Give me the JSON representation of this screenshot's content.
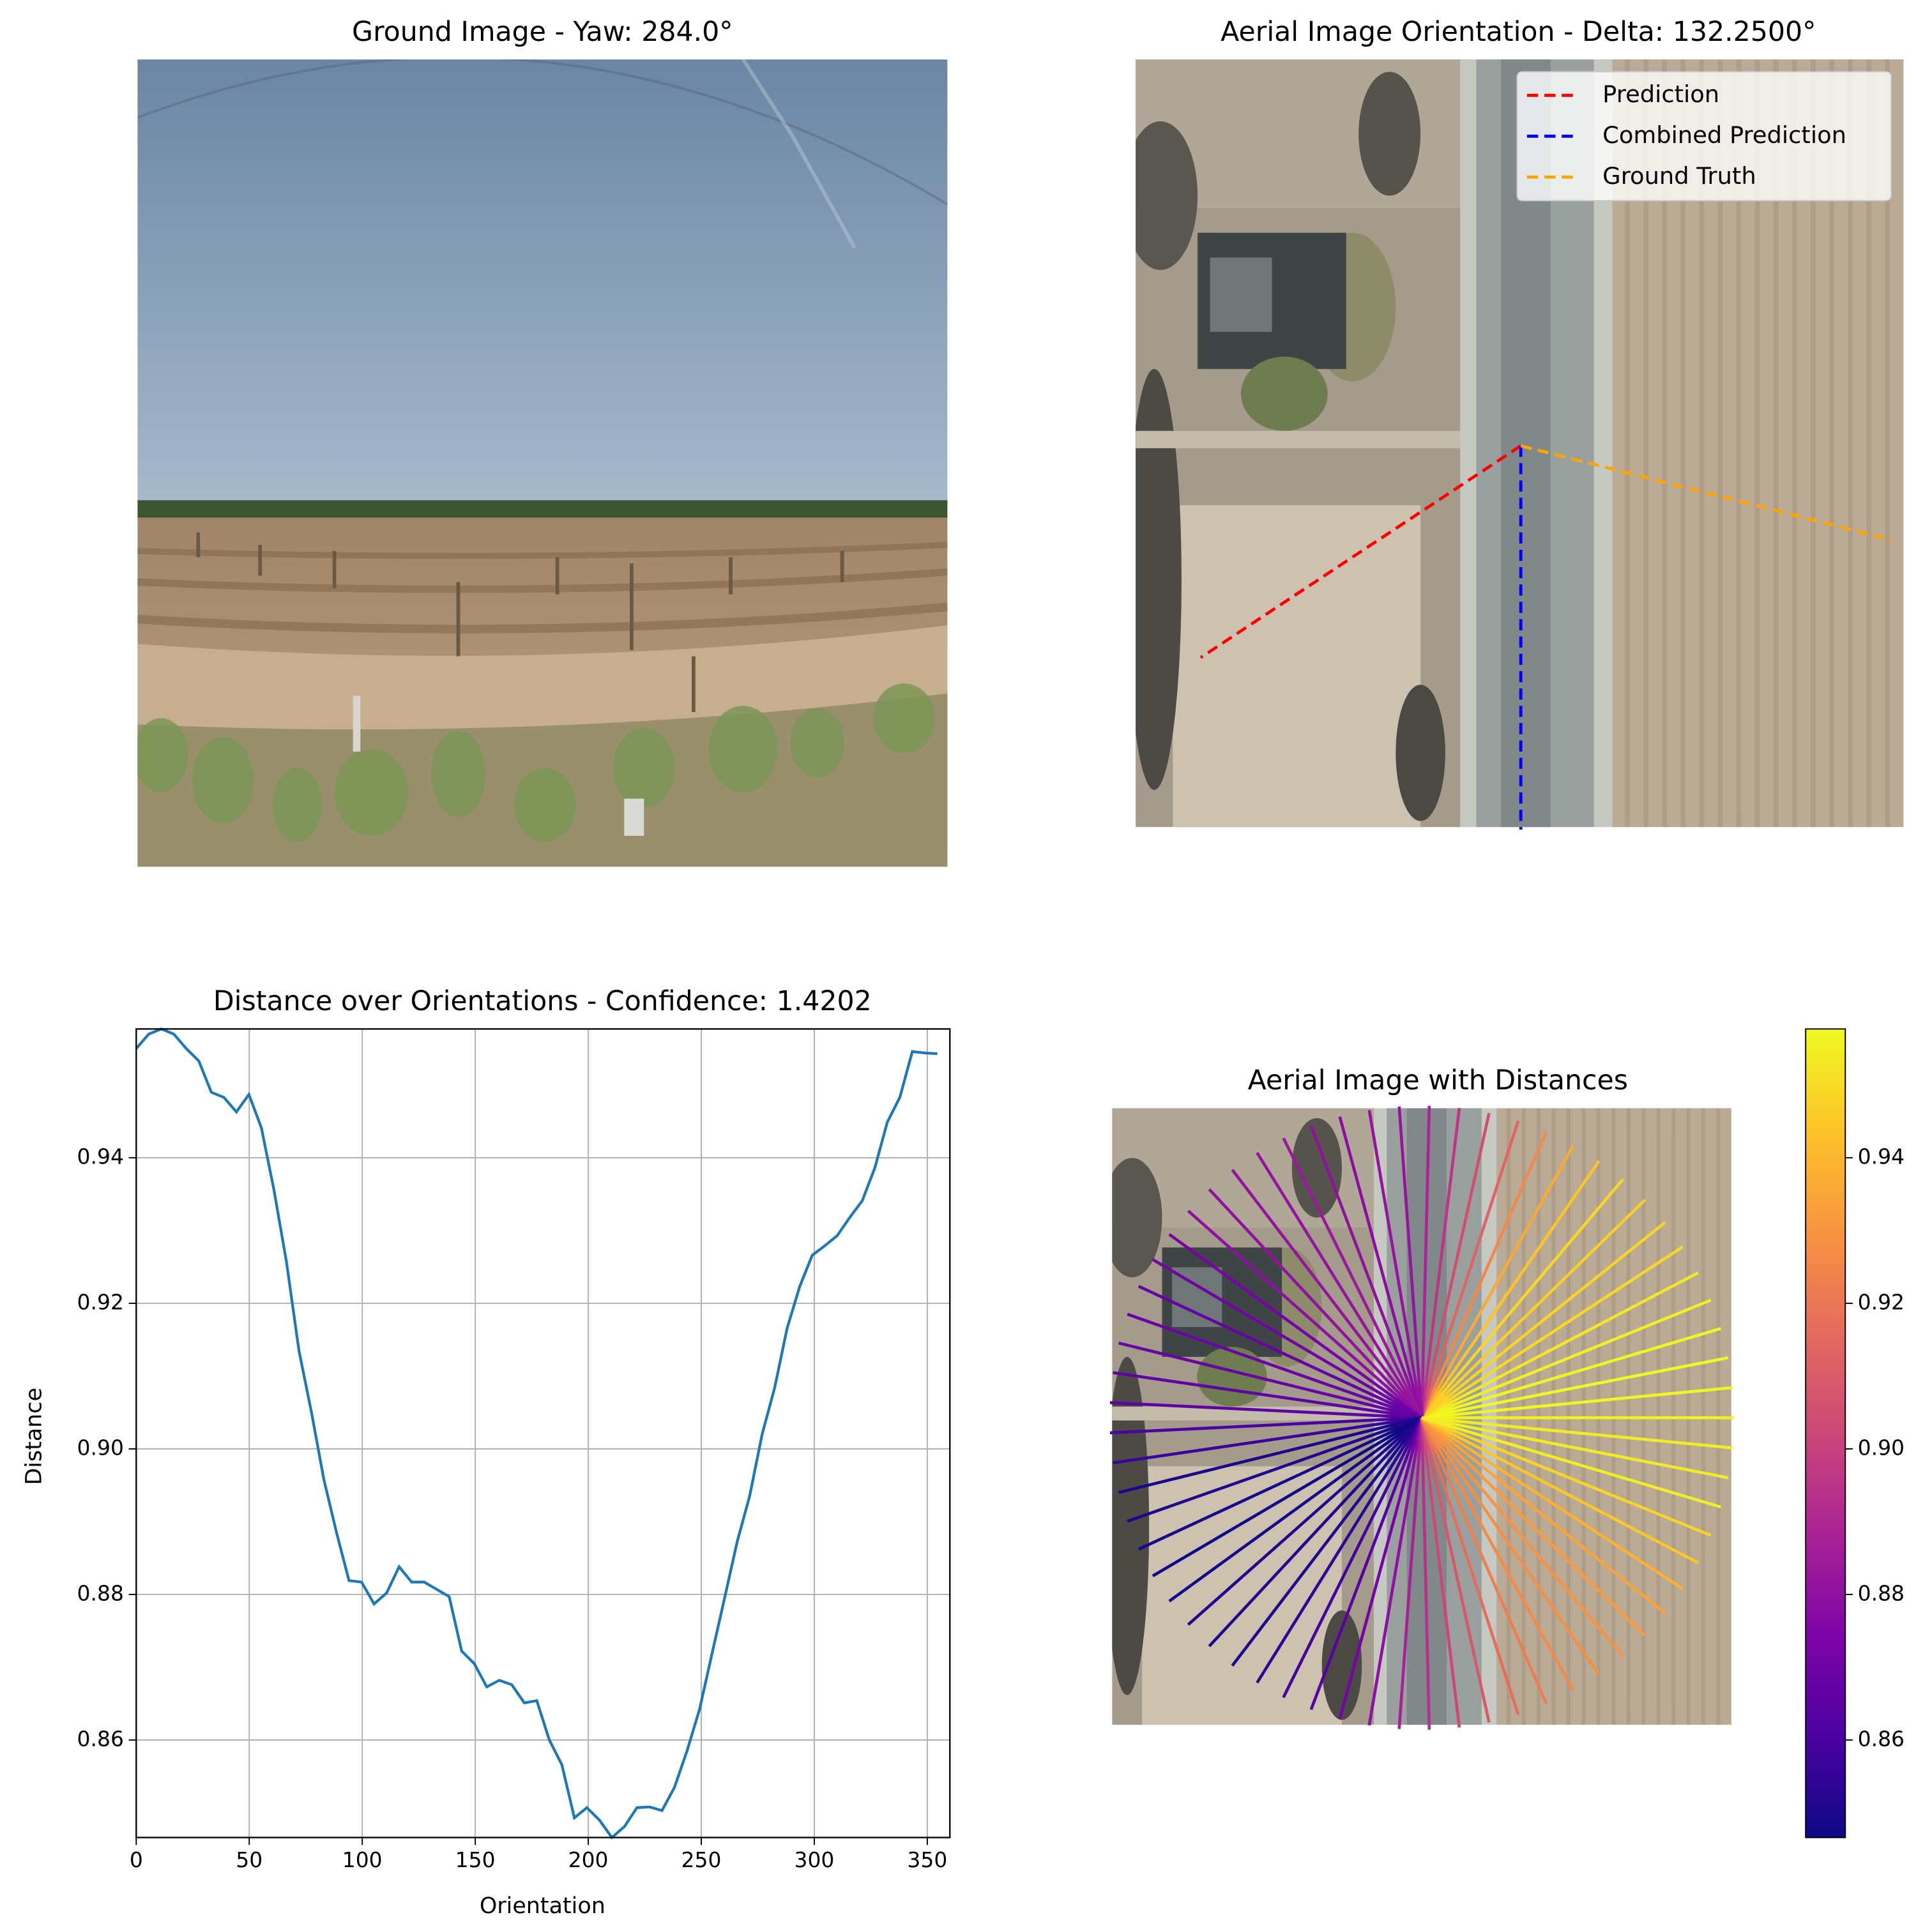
{
  "chart_data": [
    {
      "type": "image",
      "title": "Ground Image - Yaw: 284.0°"
    },
    {
      "type": "orientation",
      "title": "Aerial Image Orientation - Delta: 132.2500°",
      "legend": "upper right",
      "series": [
        {
          "name": "Prediction",
          "color": "#ff0000",
          "values": [
            213.5
          ]
        },
        {
          "name": "Combined Prediction",
          "color": "#0000ff",
          "values": [
            270
          ]
        },
        {
          "name": "Ground Truth",
          "color": "#ffa500",
          "values": [
            345.75
          ]
        }
      ]
    },
    {
      "type": "line",
      "title": "Distance over Orientations - Confidence: 1.4202",
      "xlabel": "Orientation",
      "ylabel": "Distance",
      "color": "#1f77b4",
      "grid": true,
      "x": [
        0,
        5.54,
        11.08,
        16.62,
        22.15,
        27.69,
        33.23,
        38.77,
        44.31,
        49.85,
        55.38,
        60.92,
        66.46,
        72.0,
        77.54,
        83.08,
        88.62,
        94.15,
        99.69,
        105.23,
        110.77,
        116.31,
        121.85,
        127.38,
        132.92,
        138.46,
        144.0,
        149.54,
        155.08,
        160.62,
        166.15,
        171.69,
        177.23,
        182.77,
        188.31,
        193.85,
        199.38,
        204.92,
        210.46,
        216.0,
        221.54,
        227.08,
        232.62,
        238.15,
        243.69,
        249.23,
        254.77,
        260.31,
        265.85,
        271.38,
        276.92,
        282.46,
        288.0,
        293.54,
        299.08,
        304.62,
        310.15,
        315.69,
        321.23,
        326.77,
        332.31,
        337.85,
        343.38,
        348.92,
        354.46
      ],
      "values": [
        0.955,
        0.957,
        0.9577,
        0.957,
        0.955,
        0.9533,
        0.949,
        0.9483,
        0.9463,
        0.9487,
        0.9441,
        0.9356,
        0.9257,
        0.9135,
        0.905,
        0.8957,
        0.8885,
        0.8819,
        0.8817,
        0.8787,
        0.8802,
        0.8838,
        0.8817,
        0.8817,
        0.8807,
        0.8797,
        0.8722,
        0.8705,
        0.8673,
        0.8682,
        0.8676,
        0.8651,
        0.8654,
        0.86,
        0.8566,
        0.8493,
        0.8507,
        0.849,
        0.8466,
        0.8481,
        0.8507,
        0.8508,
        0.8503,
        0.8535,
        0.8585,
        0.8642,
        0.8719,
        0.8795,
        0.8872,
        0.8935,
        0.902,
        0.9084,
        0.9166,
        0.9223,
        0.9266,
        0.9279,
        0.9293,
        0.9318,
        0.9341,
        0.9386,
        0.9449,
        0.9483,
        0.9546,
        0.9544,
        0.9543
      ],
      "xlim": [
        0,
        360
      ],
      "ylim": [
        0.8466,
        0.9577
      ],
      "xticks": [
        0,
        50,
        100,
        150,
        200,
        250,
        300,
        350
      ],
      "yticks": [
        0.86,
        0.88,
        {
          "value": 0.9,
          "label": "0.90"
        },
        0.92,
        0.94
      ]
    },
    {
      "type": "fan",
      "title": "Aerial Image with Distances",
      "colormap": "plasma",
      "clim": [
        0.8466,
        0.9577
      ],
      "cticks": [
        0.86,
        0.88,
        {
          "value": 0.9,
          "label": "0.90"
        },
        0.92,
        0.94
      ]
    }
  ]
}
